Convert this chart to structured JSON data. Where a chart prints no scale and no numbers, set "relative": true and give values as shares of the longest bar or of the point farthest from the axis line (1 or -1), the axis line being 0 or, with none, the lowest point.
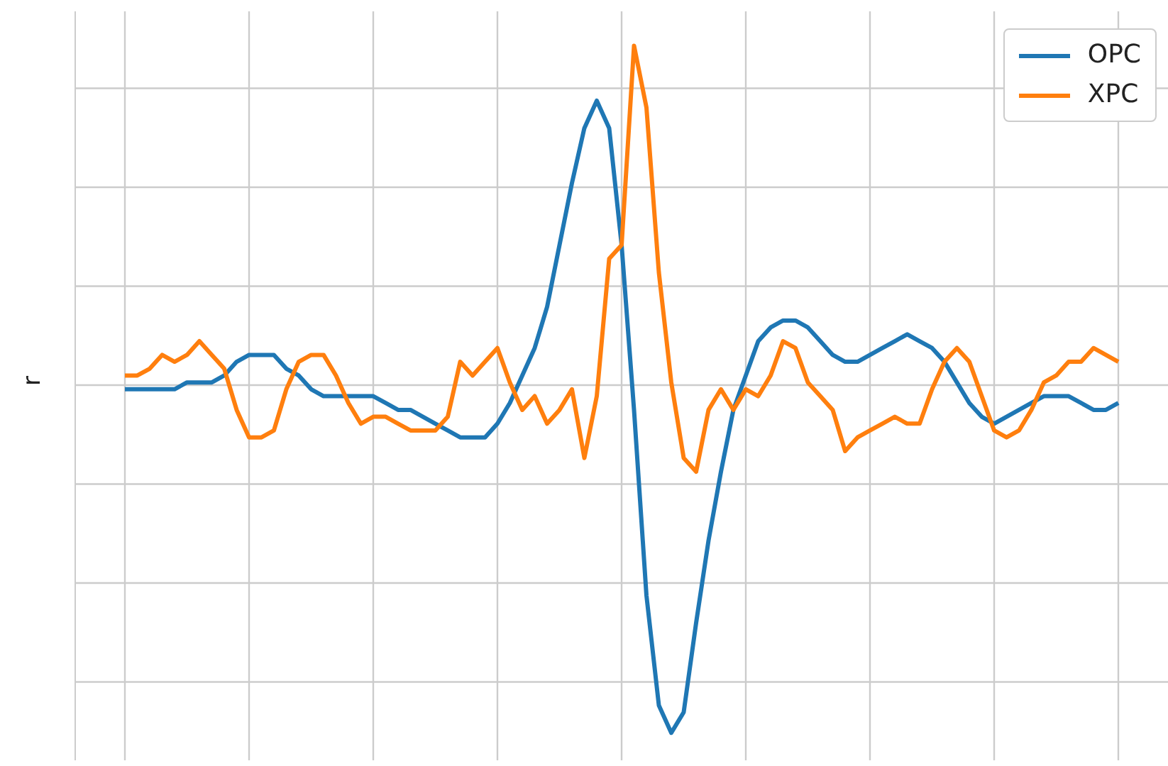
{
  "chart_data": {
    "type": "line",
    "ylabel": "r",
    "relative": true,
    "grid": true,
    "legend": "top right",
    "marker": "none",
    "line_style": "solid",
    "categories": [
      null,
      null,
      null,
      null,
      null,
      null,
      null,
      null,
      null,
      null,
      null,
      null,
      null,
      null,
      null,
      null,
      null,
      null,
      null,
      null,
      null,
      null,
      null,
      null,
      null,
      null,
      null,
      null,
      null,
      null,
      null,
      null,
      null,
      null,
      null,
      null,
      null,
      null,
      null,
      null,
      null,
      null,
      null,
      null,
      null,
      null,
      null,
      null,
      null,
      null,
      null,
      null,
      null,
      null,
      null,
      null,
      null,
      null,
      null,
      null,
      null,
      null,
      null,
      null,
      null,
      null,
      null,
      null,
      null,
      null,
      null,
      null,
      null,
      null,
      null,
      null,
      null,
      null,
      null,
      null,
      null
    ],
    "series": [
      {
        "name": "OPC",
        "color": "#1f77b4",
        "values": [
          0.5,
          0.5,
          0.5,
          0.5,
          0.5,
          0.51,
          0.51,
          0.51,
          0.52,
          0.54,
          0.55,
          0.55,
          0.55,
          0.53,
          0.52,
          0.5,
          0.49,
          0.49,
          0.49,
          0.49,
          0.49,
          0.48,
          0.47,
          0.47,
          0.46,
          0.45,
          0.44,
          0.43,
          0.43,
          0.43,
          0.45,
          0.48,
          0.52,
          0.56,
          0.62,
          0.71,
          0.8,
          0.88,
          0.92,
          0.88,
          0.71,
          0.47,
          0.2,
          0.04,
          0,
          0.03,
          0.16,
          0.28,
          0.38,
          0.47,
          0.52,
          0.57,
          0.59,
          0.6,
          0.6,
          0.59,
          0.57,
          0.55,
          0.54,
          0.54,
          0.55,
          0.56,
          0.57,
          0.58,
          0.57,
          0.56,
          0.54,
          0.51,
          0.48,
          0.46,
          0.45,
          0.46,
          0.47,
          0.48,
          0.49,
          0.49,
          0.49,
          0.48,
          0.47,
          0.47,
          0.48
        ]
      },
      {
        "name": "XPC",
        "color": "#ff7f0e",
        "values": [
          0.52,
          0.52,
          0.53,
          0.55,
          0.54,
          0.55,
          0.57,
          0.55,
          0.53,
          0.47,
          0.43,
          0.43,
          0.44,
          0.5,
          0.54,
          0.55,
          0.55,
          0.52,
          0.48,
          0.45,
          0.46,
          0.46,
          0.45,
          0.44,
          0.44,
          0.44,
          0.46,
          0.54,
          0.52,
          0.54,
          0.56,
          0.51,
          0.47,
          0.49,
          0.45,
          0.47,
          0.5,
          0.4,
          0.49,
          0.69,
          0.71,
          1.0,
          0.91,
          0.67,
          0.51,
          0.4,
          0.38,
          0.47,
          0.5,
          0.47,
          0.5,
          0.49,
          0.52,
          0.57,
          0.56,
          0.51,
          0.49,
          0.47,
          0.41,
          0.43,
          0.44,
          0.45,
          0.46,
          0.45,
          0.45,
          0.5,
          0.54,
          0.56,
          0.54,
          0.49,
          0.44,
          0.43,
          0.44,
          0.47,
          0.51,
          0.52,
          0.54,
          0.54,
          0.56,
          0.55,
          0.54
        ]
      }
    ]
  }
}
